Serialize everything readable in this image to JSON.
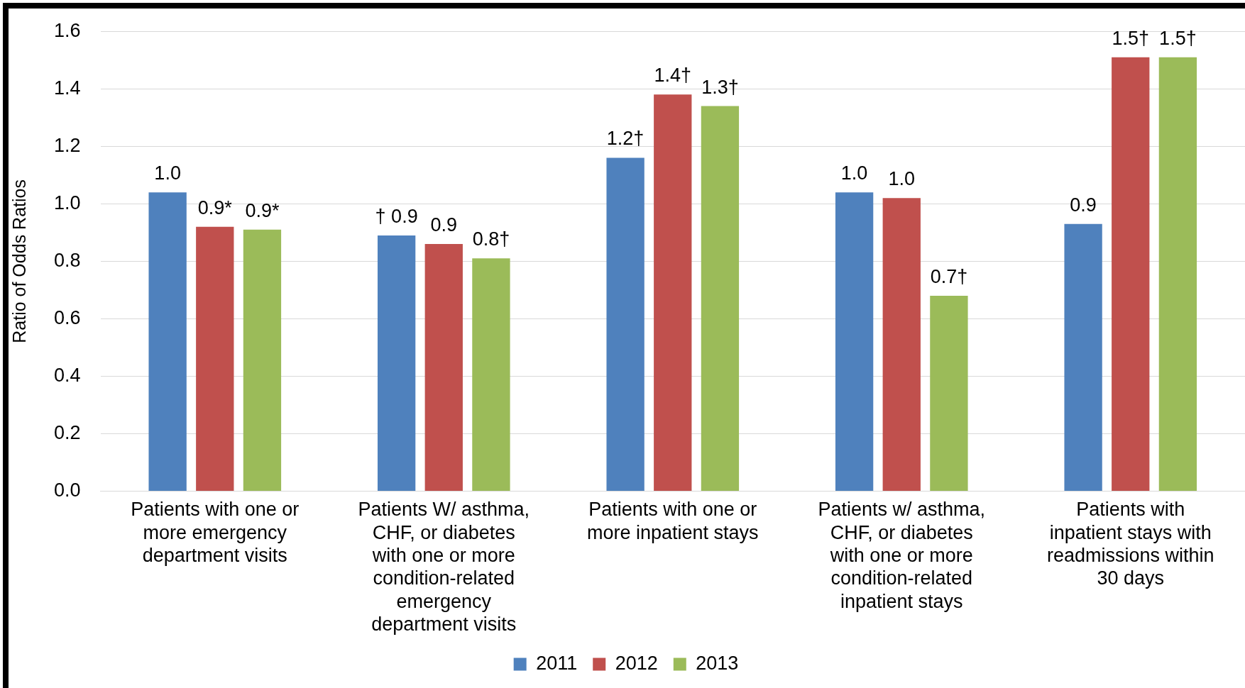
{
  "chart_data": {
    "type": "bar",
    "ylabel": "Ratio of Odds Ratios",
    "categories": [
      "Patients with one or more emergency department visits",
      "Patients W/ asthma, CHF, or diabetes with one or more condition-related emergency department visits",
      "Patients with one or more inpatient stays",
      "Patients w/ asthma, CHF, or diabetes with one or more condition-related inpatient stays",
      "Patients with inpatient stays with readmissions within 30 days"
    ],
    "series": [
      {
        "name": "2011",
        "color": "#4f81bd",
        "values": [
          1.04,
          0.89,
          1.16,
          1.04,
          0.93
        ],
        "value_labels": [
          "1.0",
          "† 0.9",
          "1.2†",
          "1.0",
          "0.9"
        ]
      },
      {
        "name": "2012",
        "color": "#c0504d",
        "values": [
          0.92,
          0.86,
          1.38,
          1.02,
          1.51
        ],
        "value_labels": [
          "0.9*",
          "0.9",
          "1.4†",
          "1.0",
          "1.5†"
        ]
      },
      {
        "name": "2013",
        "color": "#9bbb59",
        "values": [
          0.91,
          0.81,
          1.34,
          0.68,
          1.51
        ],
        "value_labels": [
          "0.9*",
          "0.8†",
          "1.3†",
          "0.7†",
          "1.5†"
        ]
      }
    ],
    "ylim": [
      0,
      1.6
    ],
    "yticks": [
      {
        "value": 0,
        "label": "0.0"
      },
      0.2,
      0.4,
      0.6,
      0.8,
      {
        "value": 1,
        "label": "1.0"
      },
      1.2,
      1.4,
      1.6
    ],
    "grid": "y",
    "legend": "bottom"
  }
}
